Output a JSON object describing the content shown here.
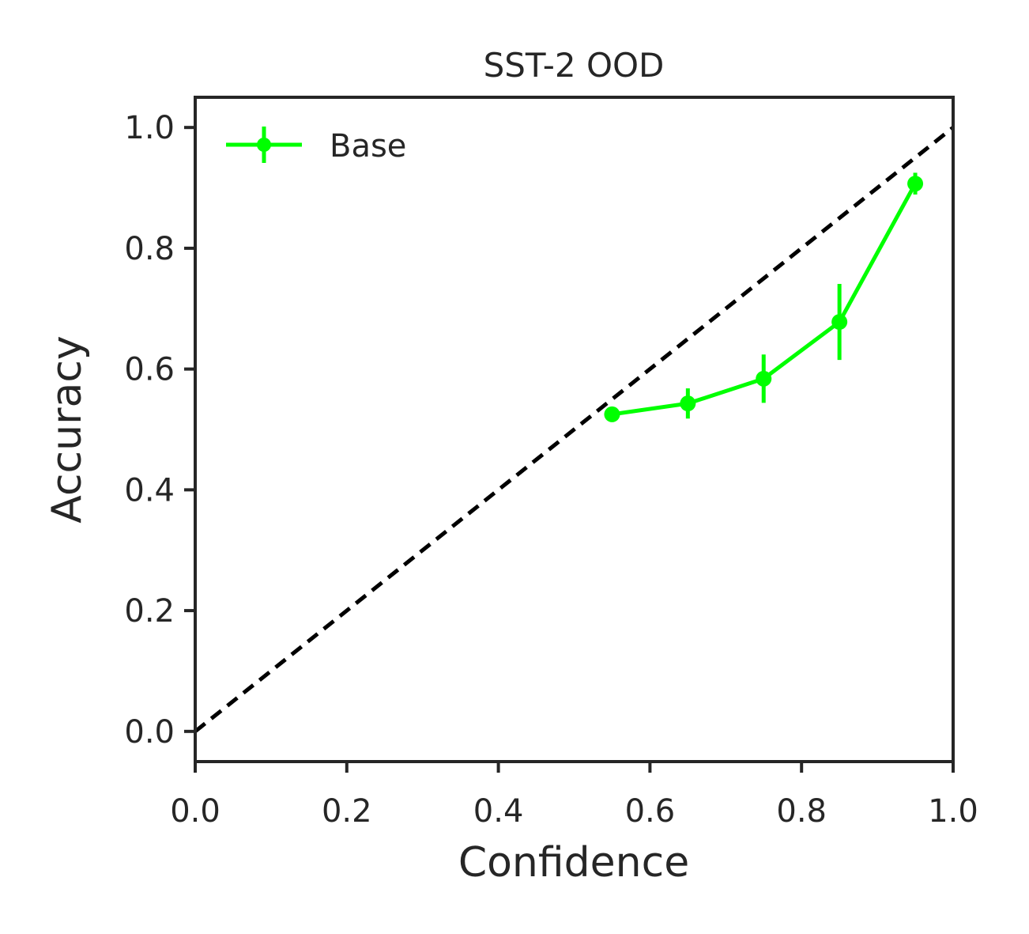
{
  "chart_data": {
    "type": "line",
    "title": "SST-2 OOD",
    "xlabel": "Confidence",
    "ylabel": "Accuracy",
    "xlim": [
      0.0,
      1.0
    ],
    "ylim": [
      -0.05,
      1.05
    ],
    "xticks": [
      "0.0",
      "0.2",
      "0.4",
      "0.6",
      "0.8",
      "1.0"
    ],
    "yticks": [
      "0.0",
      "0.2",
      "0.4",
      "0.6",
      "0.8",
      "1.0"
    ],
    "grid": false,
    "legend_position": "top-left",
    "reference_line": {
      "style": "dashed",
      "color": "#000000",
      "from": [
        0.0,
        0.0
      ],
      "to": [
        1.0,
        1.0
      ]
    },
    "series": [
      {
        "name": "Base",
        "color": "#00ff00",
        "x": [
          0.55,
          0.65,
          0.75,
          0.85,
          0.95
        ],
        "y": [
          0.525,
          0.543,
          0.584,
          0.678,
          0.907
        ],
        "yerr": [
          0.008,
          0.025,
          0.04,
          0.063,
          0.018
        ]
      }
    ]
  }
}
